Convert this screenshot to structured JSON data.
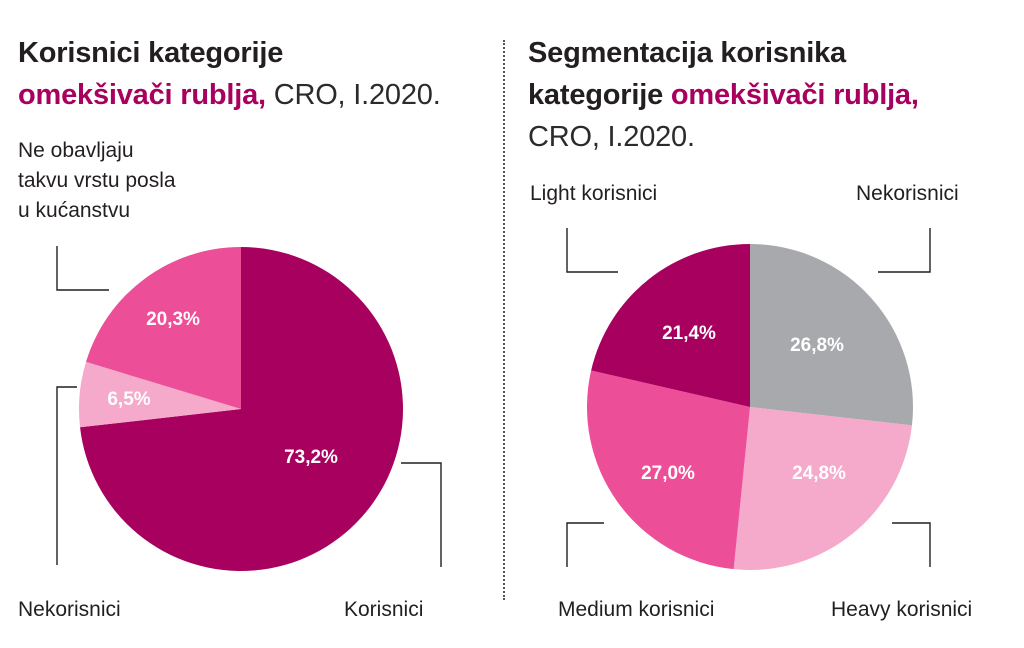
{
  "left_title": {
    "line1": "Korisnici kategorije",
    "accent": "omekšivači rublja,",
    "rest": " CRO, I.2020."
  },
  "right_title": {
    "line1": "Segmentacija korisnika",
    "line2_plain": "kategorije ",
    "accent": "omekšivači rublja,",
    "line3": "CRO, I.2020."
  },
  "colors": {
    "dark_magenta": "#a8005f",
    "pink": "#ec4f97",
    "light_pink": "#f5a9cb",
    "grey": "#a7a9ac"
  },
  "chart_data": [
    {
      "type": "pie",
      "title": "Korisnici kategorije omekšivači rublja, CRO, I.2020.",
      "slices": [
        {
          "label": "Korisnici",
          "value": 73.2,
          "display": "73,2%",
          "color": "#a8005f"
        },
        {
          "label": "Nekorisnici",
          "value": 6.5,
          "display": "6,5%",
          "color": "#f5a9cb"
        },
        {
          "label": "Ne obavljaju takvu vrstu posla u kućanstvu",
          "value": 20.3,
          "display": "20,3%",
          "color": "#ec4f97"
        }
      ],
      "outer_labels": {
        "korisnici": "Korisnici",
        "nekorisnici": "Nekorisnici",
        "ne_obavljaju_1": "Ne obavljaju",
        "ne_obavljaju_2": "takvu vrstu posla",
        "ne_obavljaju_3": "u kućanstvu"
      }
    },
    {
      "type": "pie",
      "title": "Segmentacija korisnika kategorije omekšivači rublja, CRO, I.2020.",
      "slices": [
        {
          "label": "Nekorisnici",
          "value": 26.8,
          "display": "26,8%",
          "color": "#a7a9ac"
        },
        {
          "label": "Heavy korisnici",
          "value": 24.8,
          "display": "24,8%",
          "color": "#f5a9cb"
        },
        {
          "label": "Medium korisnici",
          "value": 27.0,
          "display": "27,0%",
          "color": "#ec4f97"
        },
        {
          "label": "Light korisnici",
          "value": 21.4,
          "display": "21,4%",
          "color": "#a8005f"
        }
      ],
      "outer_labels": {
        "light": "Light korisnici",
        "nekorisnici": "Nekorisnici",
        "medium": "Medium korisnici",
        "heavy": "Heavy korisnici"
      }
    }
  ]
}
